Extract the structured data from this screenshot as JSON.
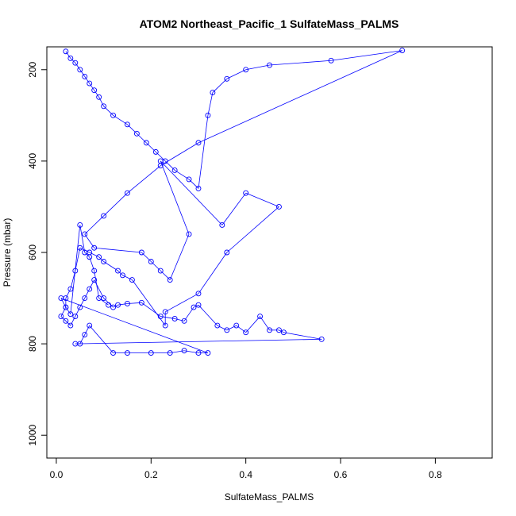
{
  "chart_data": {
    "type": "scatter",
    "title": "ATOM2 Northeast_Pacific_1 SulfateMass_PALMS",
    "xlabel": "SulfateMass_PALMS",
    "ylabel": "Pressure (mbar)",
    "xlim": [
      -0.02,
      0.92
    ],
    "ylim": [
      1050,
      150
    ],
    "y_reversed": true,
    "x_ticks": [
      0.0,
      0.2,
      0.4,
      0.6,
      0.8
    ],
    "y_ticks": [
      200,
      400,
      600,
      800,
      1000
    ],
    "x_tick_labels": [
      "0.0",
      "0.2",
      "0.4",
      "0.6",
      "0.8"
    ],
    "y_tick_labels": [
      "200",
      "400",
      "600",
      "800",
      "1000"
    ],
    "grid": false,
    "legend": "none",
    "marker": "open-circle",
    "color": "#0000ff",
    "series": [
      {
        "x": [
          0.02,
          0.03,
          0.04,
          0.05,
          0.06,
          0.07,
          0.08,
          0.09,
          0.1,
          0.12,
          0.15,
          0.17,
          0.19,
          0.21,
          0.23,
          0.25,
          0.28,
          0.3,
          0.32,
          0.33,
          0.36,
          0.4,
          0.45,
          0.58,
          0.73,
          0.3,
          0.22,
          0.15,
          0.1,
          0.06,
          0.08,
          0.18,
          0.2,
          0.22,
          0.24,
          0.28,
          0.22,
          0.35,
          0.4,
          0.47,
          0.36,
          0.3,
          0.23,
          0.23,
          0.16,
          0.14,
          0.13,
          0.1,
          0.09,
          0.07,
          0.05,
          0.04,
          0.03,
          0.02,
          0.02,
          0.01,
          0.02,
          0.03,
          0.04,
          0.05,
          0.06,
          0.07,
          0.08,
          0.1,
          0.12,
          0.13,
          0.15,
          0.18,
          0.22,
          0.25,
          0.27,
          0.29,
          0.3,
          0.34,
          0.36,
          0.38,
          0.4,
          0.43,
          0.45,
          0.47,
          0.48,
          0.56,
          0.04,
          0.05,
          0.06,
          0.07,
          0.12,
          0.15,
          0.2,
          0.24,
          0.27,
          0.3,
          0.32,
          0.01,
          0.02,
          0.03,
          0.05,
          0.06,
          0.07,
          0.08,
          0.09,
          0.11
        ],
        "y": [
          160,
          175,
          185,
          200,
          215,
          230,
          245,
          260,
          280,
          300,
          320,
          340,
          360,
          380,
          400,
          420,
          440,
          460,
          300,
          250,
          220,
          200,
          190,
          180,
          158,
          360,
          410,
          470,
          520,
          560,
          590,
          600,
          620,
          640,
          660,
          560,
          400,
          540,
          470,
          500,
          600,
          690,
          730,
          760,
          660,
          650,
          640,
          620,
          610,
          600,
          590,
          640,
          680,
          700,
          720,
          740,
          750,
          760,
          740,
          720,
          700,
          680,
          660,
          700,
          720,
          715,
          712,
          710,
          740,
          745,
          750,
          720,
          715,
          760,
          770,
          760,
          775,
          740,
          770,
          770,
          775,
          790,
          800,
          800,
          780,
          760,
          820,
          820,
          820,
          820,
          815,
          820,
          820,
          700,
          720,
          735,
          540,
          600,
          610,
          640,
          700,
          715
        ]
      }
    ]
  }
}
